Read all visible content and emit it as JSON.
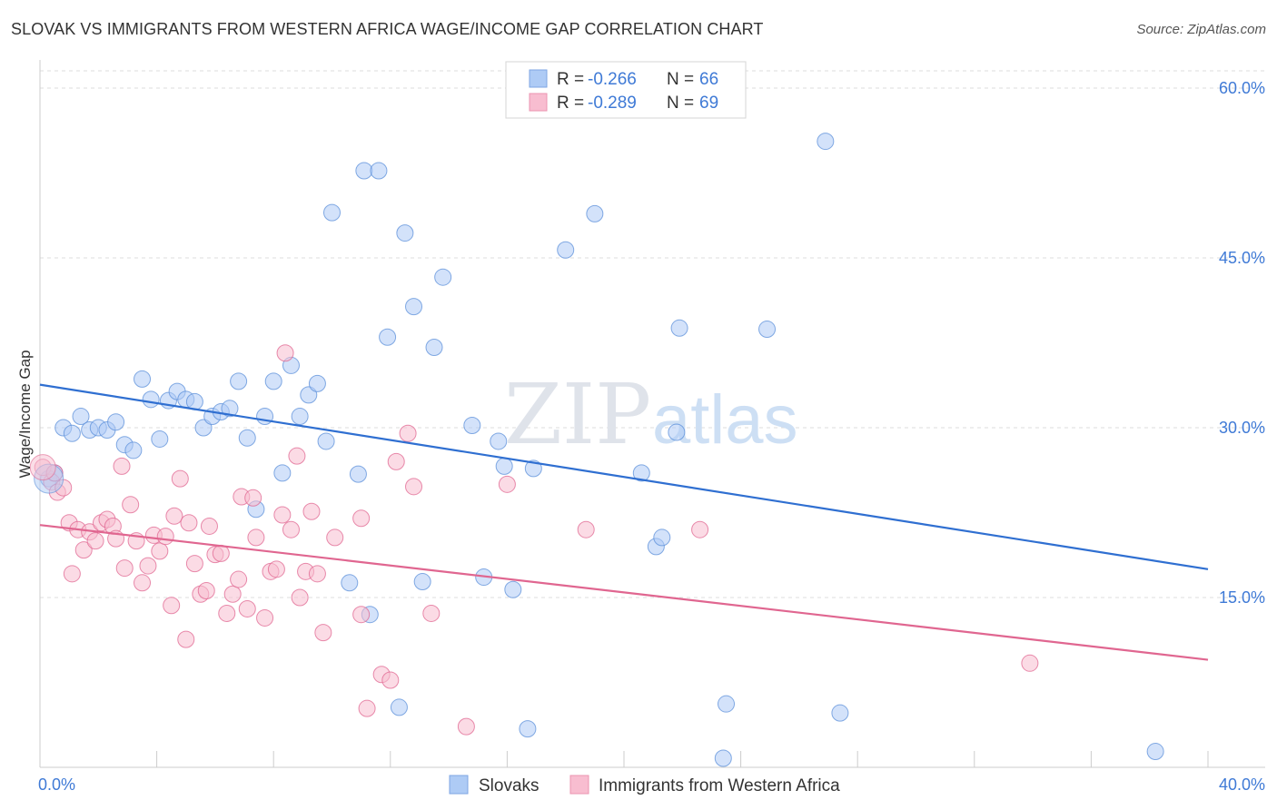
{
  "title": "SLOVAK VS IMMIGRANTS FROM WESTERN AFRICA WAGE/INCOME GAP CORRELATION CHART",
  "source": "Source: ZipAtlas.com",
  "watermark": {
    "zip": "ZIP",
    "atlas": "atlas"
  },
  "legend": {
    "r_label": "R =",
    "n_label": "N =",
    "items": [
      {
        "r": "-0.266",
        "n": "66",
        "color": "#aecbf5"
      },
      {
        "r": "-0.289",
        "n": "69",
        "color": "#f8bdd0"
      }
    ]
  },
  "bottom_legend": [
    "Slovaks",
    "Immigrants from Western Africa"
  ],
  "chart_data": {
    "type": "scatter",
    "title": "SLOVAK VS IMMIGRANTS FROM WESTERN AFRICA WAGE/INCOME GAP CORRELATION CHART",
    "xlabel": "",
    "ylabel": "Wage/Income Gap",
    "xlim": [
      0,
      40
    ],
    "ylim": [
      0,
      60
    ],
    "x_tick_labels": [
      "0.0%",
      "40.0%"
    ],
    "y_ticks": [
      15,
      30,
      45,
      60
    ],
    "y_tick_labels": [
      "15.0%",
      "30.0%",
      "45.0%",
      "60.0%"
    ],
    "grid": true,
    "legend_position": "top-center",
    "series": [
      {
        "name": "Slovaks",
        "color": "#5b8fd9",
        "fill": "#aecbf5",
        "trend": [
          [
            0,
            33.8
          ],
          [
            40,
            17.5
          ]
        ],
        "points": [
          [
            0.3,
            25.5
          ],
          [
            0.5,
            26.0
          ],
          [
            0.8,
            30.0
          ],
          [
            1.1,
            29.5
          ],
          [
            1.4,
            31.0
          ],
          [
            1.7,
            29.8
          ],
          [
            2.0,
            30.0
          ],
          [
            2.3,
            29.8
          ],
          [
            2.6,
            30.5
          ],
          [
            2.9,
            28.5
          ],
          [
            3.2,
            28.0
          ],
          [
            3.5,
            34.3
          ],
          [
            3.8,
            32.5
          ],
          [
            4.1,
            29.0
          ],
          [
            4.4,
            32.4
          ],
          [
            4.7,
            33.2
          ],
          [
            5.0,
            32.5
          ],
          [
            5.3,
            32.3
          ],
          [
            5.6,
            30.0
          ],
          [
            5.9,
            31.0
          ],
          [
            6.2,
            31.4
          ],
          [
            6.5,
            31.7
          ],
          [
            6.8,
            34.1
          ],
          [
            7.1,
            29.1
          ],
          [
            7.4,
            22.8
          ],
          [
            7.7,
            31.0
          ],
          [
            8.0,
            34.1
          ],
          [
            8.3,
            26.0
          ],
          [
            8.6,
            35.5
          ],
          [
            8.9,
            31.0
          ],
          [
            9.2,
            32.9
          ],
          [
            9.5,
            33.9
          ],
          [
            9.8,
            28.8
          ],
          [
            10.0,
            49.0
          ],
          [
            10.6,
            16.3
          ],
          [
            10.9,
            25.9
          ],
          [
            11.1,
            52.7
          ],
          [
            11.3,
            13.5
          ],
          [
            11.6,
            52.7
          ],
          [
            11.9,
            38.0
          ],
          [
            12.3,
            5.3
          ],
          [
            12.5,
            47.2
          ],
          [
            12.8,
            40.7
          ],
          [
            13.1,
            16.4
          ],
          [
            13.5,
            37.1
          ],
          [
            13.8,
            43.3
          ],
          [
            14.8,
            30.2
          ],
          [
            15.2,
            16.8
          ],
          [
            15.7,
            28.8
          ],
          [
            15.9,
            26.6
          ],
          [
            16.2,
            15.7
          ],
          [
            16.7,
            3.4
          ],
          [
            16.9,
            26.4
          ],
          [
            18.0,
            45.7
          ],
          [
            19.0,
            48.9
          ],
          [
            20.6,
            26.0
          ],
          [
            21.1,
            19.5
          ],
          [
            21.3,
            20.3
          ],
          [
            21.8,
            29.6
          ],
          [
            21.9,
            38.8
          ],
          [
            23.4,
            0.8
          ],
          [
            23.5,
            5.6
          ],
          [
            24.9,
            38.7
          ],
          [
            26.9,
            55.3
          ],
          [
            27.4,
            4.8
          ],
          [
            38.2,
            1.4
          ]
        ]
      },
      {
        "name": "Immigrants from Western Africa",
        "color": "#e06690",
        "fill": "#f8bdd0",
        "trend": [
          [
            0,
            21.4
          ],
          [
            40,
            9.5
          ]
        ],
        "points": [
          [
            0.1,
            26.5
          ],
          [
            0.4,
            25.2
          ],
          [
            0.6,
            24.3
          ],
          [
            0.8,
            24.7
          ],
          [
            1.0,
            21.6
          ],
          [
            1.1,
            17.1
          ],
          [
            1.3,
            21.0
          ],
          [
            1.5,
            19.2
          ],
          [
            1.7,
            20.8
          ],
          [
            1.9,
            20.0
          ],
          [
            2.1,
            21.6
          ],
          [
            2.3,
            21.9
          ],
          [
            2.5,
            21.3
          ],
          [
            2.6,
            20.2
          ],
          [
            2.8,
            26.6
          ],
          [
            2.9,
            17.6
          ],
          [
            3.1,
            23.2
          ],
          [
            3.3,
            20.0
          ],
          [
            3.5,
            16.3
          ],
          [
            3.7,
            17.8
          ],
          [
            3.9,
            20.5
          ],
          [
            4.1,
            19.1
          ],
          [
            4.3,
            20.4
          ],
          [
            4.5,
            14.3
          ],
          [
            4.6,
            22.2
          ],
          [
            4.8,
            25.5
          ],
          [
            5.0,
            11.3
          ],
          [
            5.1,
            21.6
          ],
          [
            5.3,
            18.0
          ],
          [
            5.5,
            15.3
          ],
          [
            5.7,
            15.6
          ],
          [
            5.8,
            21.3
          ],
          [
            6.0,
            18.8
          ],
          [
            6.2,
            18.9
          ],
          [
            6.4,
            13.6
          ],
          [
            6.6,
            15.3
          ],
          [
            6.8,
            16.6
          ],
          [
            6.9,
            23.9
          ],
          [
            7.1,
            14.0
          ],
          [
            7.3,
            23.8
          ],
          [
            7.4,
            20.3
          ],
          [
            7.7,
            13.2
          ],
          [
            7.9,
            17.3
          ],
          [
            8.1,
            17.5
          ],
          [
            8.3,
            22.3
          ],
          [
            8.4,
            36.6
          ],
          [
            8.6,
            21.0
          ],
          [
            8.8,
            27.5
          ],
          [
            8.9,
            15.0
          ],
          [
            9.1,
            17.3
          ],
          [
            9.3,
            22.6
          ],
          [
            9.5,
            17.1
          ],
          [
            9.7,
            11.9
          ],
          [
            10.1,
            20.3
          ],
          [
            11.0,
            22.0
          ],
          [
            11.0,
            13.5
          ],
          [
            11.2,
            5.2
          ],
          [
            11.7,
            8.2
          ],
          [
            12.0,
            7.7
          ],
          [
            12.2,
            27.0
          ],
          [
            12.6,
            29.5
          ],
          [
            12.8,
            24.8
          ],
          [
            13.4,
            13.6
          ],
          [
            14.6,
            3.6
          ],
          [
            16.0,
            25.0
          ],
          [
            18.7,
            21.0
          ],
          [
            22.6,
            21.0
          ],
          [
            33.9,
            9.2
          ],
          [
            0.5,
            26.0
          ]
        ]
      }
    ]
  }
}
